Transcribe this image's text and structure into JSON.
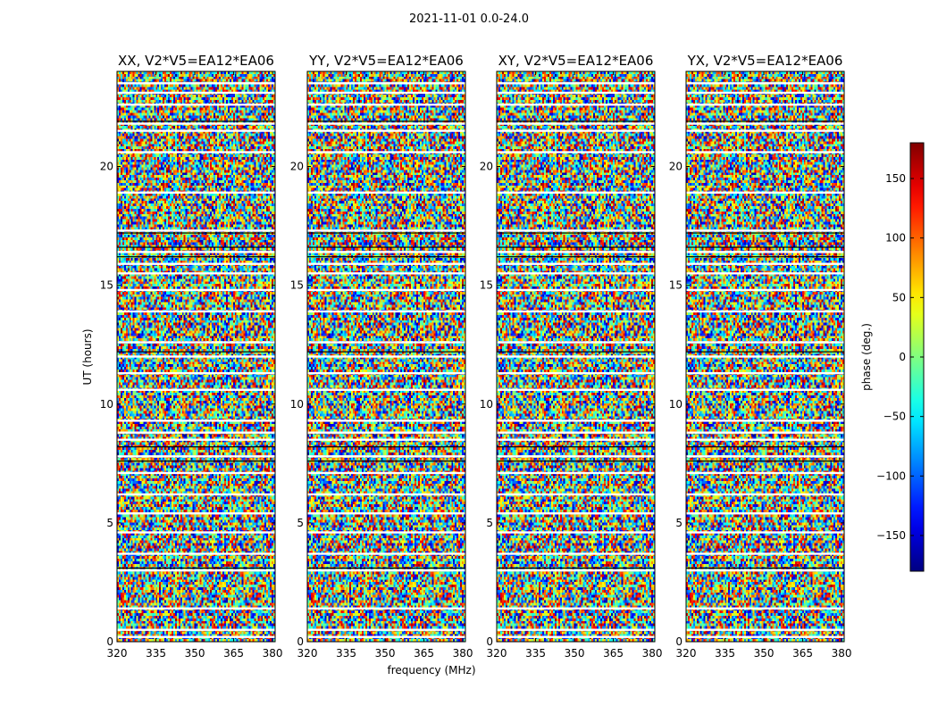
{
  "figure": {
    "title": "2021-11-01 0.0-24.0"
  },
  "chart_data": {
    "type": "heatmap",
    "xlabel": "frequency (MHz)",
    "ylabel": "UT (hours)",
    "xlim": [
      320,
      381
    ],
    "ylim": [
      0,
      24
    ],
    "x_ticks": [
      320,
      335,
      350,
      365,
      380
    ],
    "y_ticks": [
      0,
      5,
      10,
      15,
      20
    ],
    "colorbar": {
      "label": "phase (deg.)",
      "range": [
        -180,
        180
      ],
      "ticks": [
        150,
        100,
        50,
        0,
        -50,
        -100,
        -150
      ],
      "tick_labels": [
        "150",
        "100",
        "50",
        "0",
        "−50",
        "−100",
        "−150"
      ],
      "colormap": "jet",
      "colors": [
        "#00007f",
        "#0000ff",
        "#007fff",
        "#00ffff",
        "#7fff7f",
        "#ffff00",
        "#ff7f00",
        "#ff0000",
        "#7f0000"
      ]
    },
    "panels": [
      {
        "title": "XX, V2*V5=EA12*EA06"
      },
      {
        "title": "YY, V2*V5=EA12*EA06"
      },
      {
        "title": "XY, V2*V5=EA12*EA06"
      },
      {
        "title": "YX, V2*V5=EA12*EA06"
      }
    ],
    "flagged_gaps_ut": [
      23.5,
      23.1,
      22.6,
      21.8,
      21.5,
      20.6,
      18.9,
      17.3,
      16.4,
      15.9,
      15.5,
      14.8,
      13.9,
      12.6,
      12.0,
      11.3,
      10.6,
      9.3,
      8.8,
      8.5,
      7.8,
      7.1,
      6.2,
      5.4,
      4.6,
      3.7,
      3.0,
      1.4,
      0.5,
      0.2
    ]
  }
}
